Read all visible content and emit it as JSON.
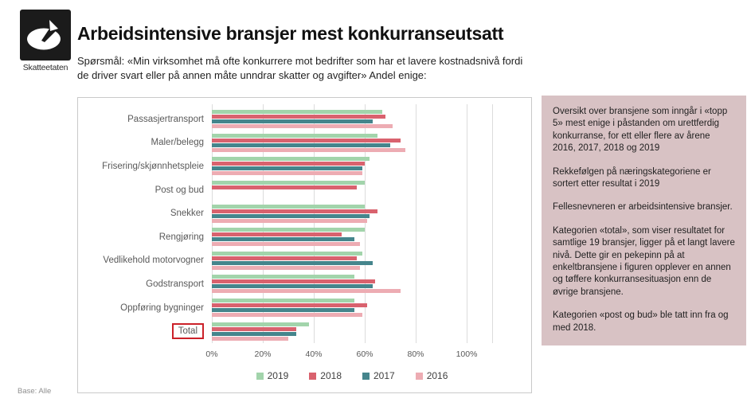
{
  "header": {
    "logo_label": "Skatteetaten",
    "title": "Arbeidsintensive bransjer mest konkurranseutsatt",
    "subtitle": "Spørsmål: «Min virksomhet må ofte konkurrere mot bedrifter som har et lavere kostnadsnivå fordi de driver svart eller på annen måte unndrar skatter og avgifter» Andel enige:"
  },
  "chart_data": {
    "type": "bar",
    "orientation": "horizontal",
    "title": "",
    "xlabel": "",
    "ylabel": "",
    "xlim": [
      0,
      110
    ],
    "grid": true,
    "legend_position": "bottom",
    "categories": [
      "Passasjertransport",
      "Maler/belegg",
      "Frisering/skjønnhetspleie",
      "Post og bud",
      "Snekker",
      "Rengjøring",
      "Vedlikehold motorvogner",
      "Godstransport",
      "Oppføring bygninger",
      "Total"
    ],
    "series": [
      {
        "name": "2019",
        "color": "#a2d4ab",
        "values": [
          67,
          65,
          62,
          60,
          60,
          60,
          59,
          56,
          56,
          38
        ]
      },
      {
        "name": "2018",
        "color": "#d9626e",
        "values": [
          68,
          74,
          60,
          57,
          65,
          51,
          57,
          64,
          61,
          33
        ]
      },
      {
        "name": "2017",
        "color": "#45858c",
        "values": [
          63,
          70,
          59,
          null,
          62,
          56,
          63,
          63,
          56,
          33
        ]
      },
      {
        "name": "2016",
        "color": "#edacb3",
        "values": [
          71,
          76,
          59,
          null,
          61,
          58,
          58,
          74,
          59,
          30
        ]
      }
    ],
    "x_ticks": [
      "0%",
      "20%",
      "40%",
      "60%",
      "80%",
      "100%"
    ],
    "highlighted_category": "Total",
    "highlight_color": "#cb2129",
    "unit": "%"
  },
  "sidebar": {
    "background": "#d8c2c4",
    "paragraphs": [
      "Oversikt over bransjene som inngår i «topp 5» mest enige i påstanden om urettferdig konkurranse, for ett eller flere av årene 2016, 2017, 2018 og 2019",
      "Rekkefølgen på næringskategoriene er sortert etter resultat i 2019",
      "Fellesnevneren er arbeidsintensive bransjer.",
      "Kategorien «total», som viser resultatet for samtlige 19 bransjer, ligger på et langt lavere nivå. Dette gir en pekepinn på at enkeltbransjene i figuren opplever en annen og tøffere konkurransesituasjon enn de øvrige bransjene.",
      "Kategorien «post og bud» ble tatt inn fra og med 2018."
    ]
  },
  "footer": {
    "base_note": "Base: Alle"
  }
}
